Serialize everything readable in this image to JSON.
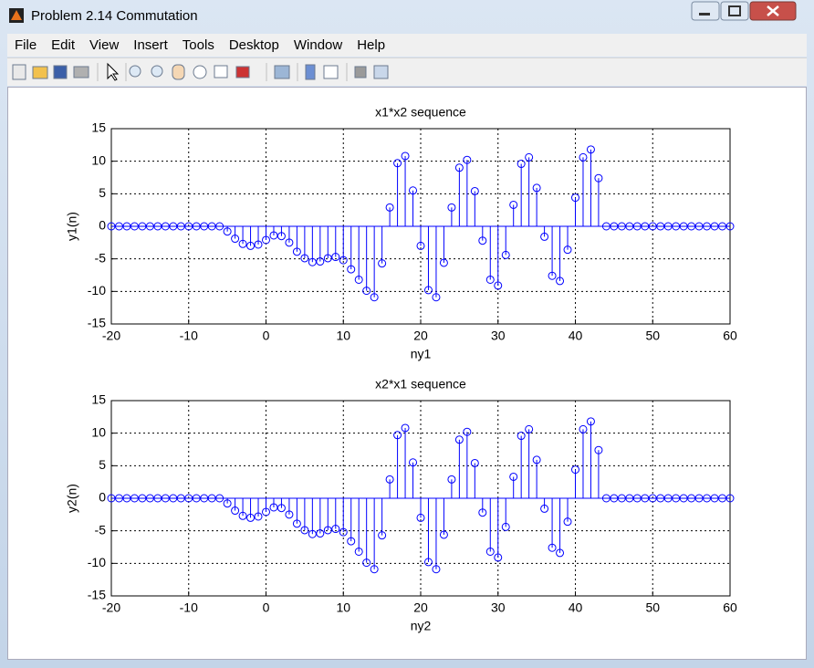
{
  "window": {
    "title": "Problem 2.14 Commutation",
    "menu": [
      "File",
      "Edit",
      "View",
      "Insert",
      "Tools",
      "Desktop",
      "Window",
      "Help"
    ]
  },
  "chart_data": [
    {
      "type": "stem",
      "title": "x1*x2 sequence",
      "xlabel": "ny1",
      "ylabel": "y1(n)",
      "color": "#0000ff",
      "grid": true,
      "xlim": [
        -20,
        60
      ],
      "ylim": [
        -15,
        15
      ],
      "xticks": [
        -20,
        -10,
        0,
        10,
        20,
        30,
        40,
        50,
        60
      ],
      "yticks": [
        -15,
        -10,
        -5,
        0,
        5,
        10,
        15
      ],
      "x": [
        -20,
        -19,
        -18,
        -17,
        -16,
        -15,
        -14,
        -13,
        -12,
        -11,
        -10,
        -9,
        -8,
        -7,
        -6,
        -5,
        -4,
        -3,
        -2,
        -1,
        0,
        1,
        2,
        3,
        4,
        5,
        6,
        7,
        8,
        9,
        10,
        11,
        12,
        13,
        14,
        15,
        16,
        17,
        18,
        19,
        20,
        21,
        22,
        23,
        24,
        25,
        26,
        27,
        28,
        29,
        30,
        31,
        32,
        33,
        34,
        35,
        36,
        37,
        38,
        39,
        40,
        41,
        42,
        43,
        44,
        45,
        46,
        47,
        48,
        49,
        50,
        51,
        52,
        53,
        54,
        55,
        56,
        57,
        58,
        59,
        60
      ],
      "values": [
        0,
        0,
        0,
        0,
        0,
        0,
        0,
        0,
        0,
        0,
        0,
        0,
        0,
        0,
        0,
        -0.8,
        -1.9,
        -2.7,
        -3.0,
        -2.8,
        -2.1,
        -1.4,
        -1.5,
        -2.5,
        -3.9,
        -4.9,
        -5.5,
        -5.4,
        -4.9,
        -4.7,
        -5.2,
        -6.6,
        -8.2,
        -9.9,
        -10.9,
        -5.7,
        2.9,
        9.7,
        10.8,
        5.5,
        -3.0,
        -9.8,
        -10.9,
        -5.6,
        2.9,
        9.0,
        10.2,
        5.4,
        -2.2,
        -8.2,
        -9.1,
        -4.4,
        3.3,
        9.6,
        10.6,
        5.9,
        -1.6,
        -7.6,
        -8.4,
        -3.6,
        4.4,
        10.6,
        11.8,
        7.4,
        0,
        0,
        0,
        0,
        0,
        0,
        0,
        0,
        0,
        0,
        0,
        0,
        0,
        0,
        0,
        0,
        0
      ]
    },
    {
      "type": "stem",
      "title": "x2*x1 sequence",
      "xlabel": "ny2",
      "ylabel": "y2(n)",
      "color": "#0000ff",
      "grid": true,
      "xlim": [
        -20,
        60
      ],
      "ylim": [
        -15,
        15
      ],
      "xticks": [
        -20,
        -10,
        0,
        10,
        20,
        30,
        40,
        50,
        60
      ],
      "yticks": [
        -15,
        -10,
        -5,
        0,
        5,
        10,
        15
      ],
      "x": [
        -20,
        -19,
        -18,
        -17,
        -16,
        -15,
        -14,
        -13,
        -12,
        -11,
        -10,
        -9,
        -8,
        -7,
        -6,
        -5,
        -4,
        -3,
        -2,
        -1,
        0,
        1,
        2,
        3,
        4,
        5,
        6,
        7,
        8,
        9,
        10,
        11,
        12,
        13,
        14,
        15,
        16,
        17,
        18,
        19,
        20,
        21,
        22,
        23,
        24,
        25,
        26,
        27,
        28,
        29,
        30,
        31,
        32,
        33,
        34,
        35,
        36,
        37,
        38,
        39,
        40,
        41,
        42,
        43,
        44,
        45,
        46,
        47,
        48,
        49,
        50,
        51,
        52,
        53,
        54,
        55,
        56,
        57,
        58,
        59,
        60
      ],
      "values": [
        0,
        0,
        0,
        0,
        0,
        0,
        0,
        0,
        0,
        0,
        0,
        0,
        0,
        0,
        0,
        -0.8,
        -1.9,
        -2.7,
        -3.0,
        -2.8,
        -2.1,
        -1.4,
        -1.5,
        -2.5,
        -3.9,
        -4.9,
        -5.5,
        -5.4,
        -4.9,
        -4.7,
        -5.2,
        -6.6,
        -8.2,
        -9.9,
        -10.9,
        -5.7,
        2.9,
        9.7,
        10.8,
        5.5,
        -3.0,
        -9.8,
        -10.9,
        -5.6,
        2.9,
        9.0,
        10.2,
        5.4,
        -2.2,
        -8.2,
        -9.1,
        -4.4,
        3.3,
        9.6,
        10.6,
        5.9,
        -1.6,
        -7.6,
        -8.4,
        -3.6,
        4.4,
        10.6,
        11.8,
        7.4,
        0,
        0,
        0,
        0,
        0,
        0,
        0,
        0,
        0,
        0,
        0,
        0,
        0,
        0,
        0,
        0,
        0
      ]
    }
  ]
}
